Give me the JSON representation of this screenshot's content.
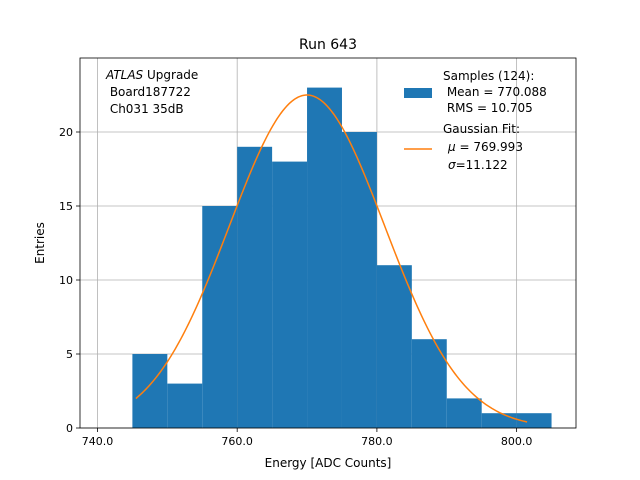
{
  "chart_data": {
    "type": "bar",
    "title": "Run 643",
    "xlabel": "Energy [ADC Counts]",
    "ylabel": "Entries",
    "xlim": [
      737.5,
      808.5
    ],
    "ylim": [
      0,
      25
    ],
    "grid": true,
    "legend_position": "top-right",
    "xticks": [
      740,
      760,
      780,
      800
    ],
    "xtick_labels": [
      "740.0",
      "760.0",
      "780.0",
      "800.0"
    ],
    "yticks": [
      0,
      5,
      10,
      15,
      20
    ],
    "ytick_labels": [
      "0",
      "5",
      "10",
      "15",
      "20"
    ],
    "histogram": {
      "bin_edges": [
        745,
        750,
        755,
        760,
        765,
        770,
        775,
        780,
        785,
        790,
        795,
        800,
        805
      ],
      "counts": [
        5,
        3,
        15,
        19,
        18,
        23,
        20,
        11,
        6,
        2,
        1,
        1
      ],
      "color": "#1f77b4"
    },
    "fit": {
      "type": "gaussian",
      "mu": 769.993,
      "sigma": 11.122,
      "amplitude": 22.5,
      "x_range": [
        745.5,
        801.5
      ],
      "color": "#ff7f0e"
    },
    "legend": {
      "samples_line1": "Samples (124):",
      "samples_line2": " Mean = 770.088",
      "samples_line3": " RMS = 10.705",
      "fit_line1": "Gaussian Fit:",
      "fit_mu_symbol": "μ",
      "fit_mu_value": " = 769.993",
      "fit_sigma_symbol": "σ",
      "fit_sigma_value": "=11.122"
    },
    "annotation": {
      "line1_italic": "ATLAS",
      "line1_rest": " Upgrade",
      "line2": " Board187722",
      "line3": " Ch031 35dB"
    }
  }
}
